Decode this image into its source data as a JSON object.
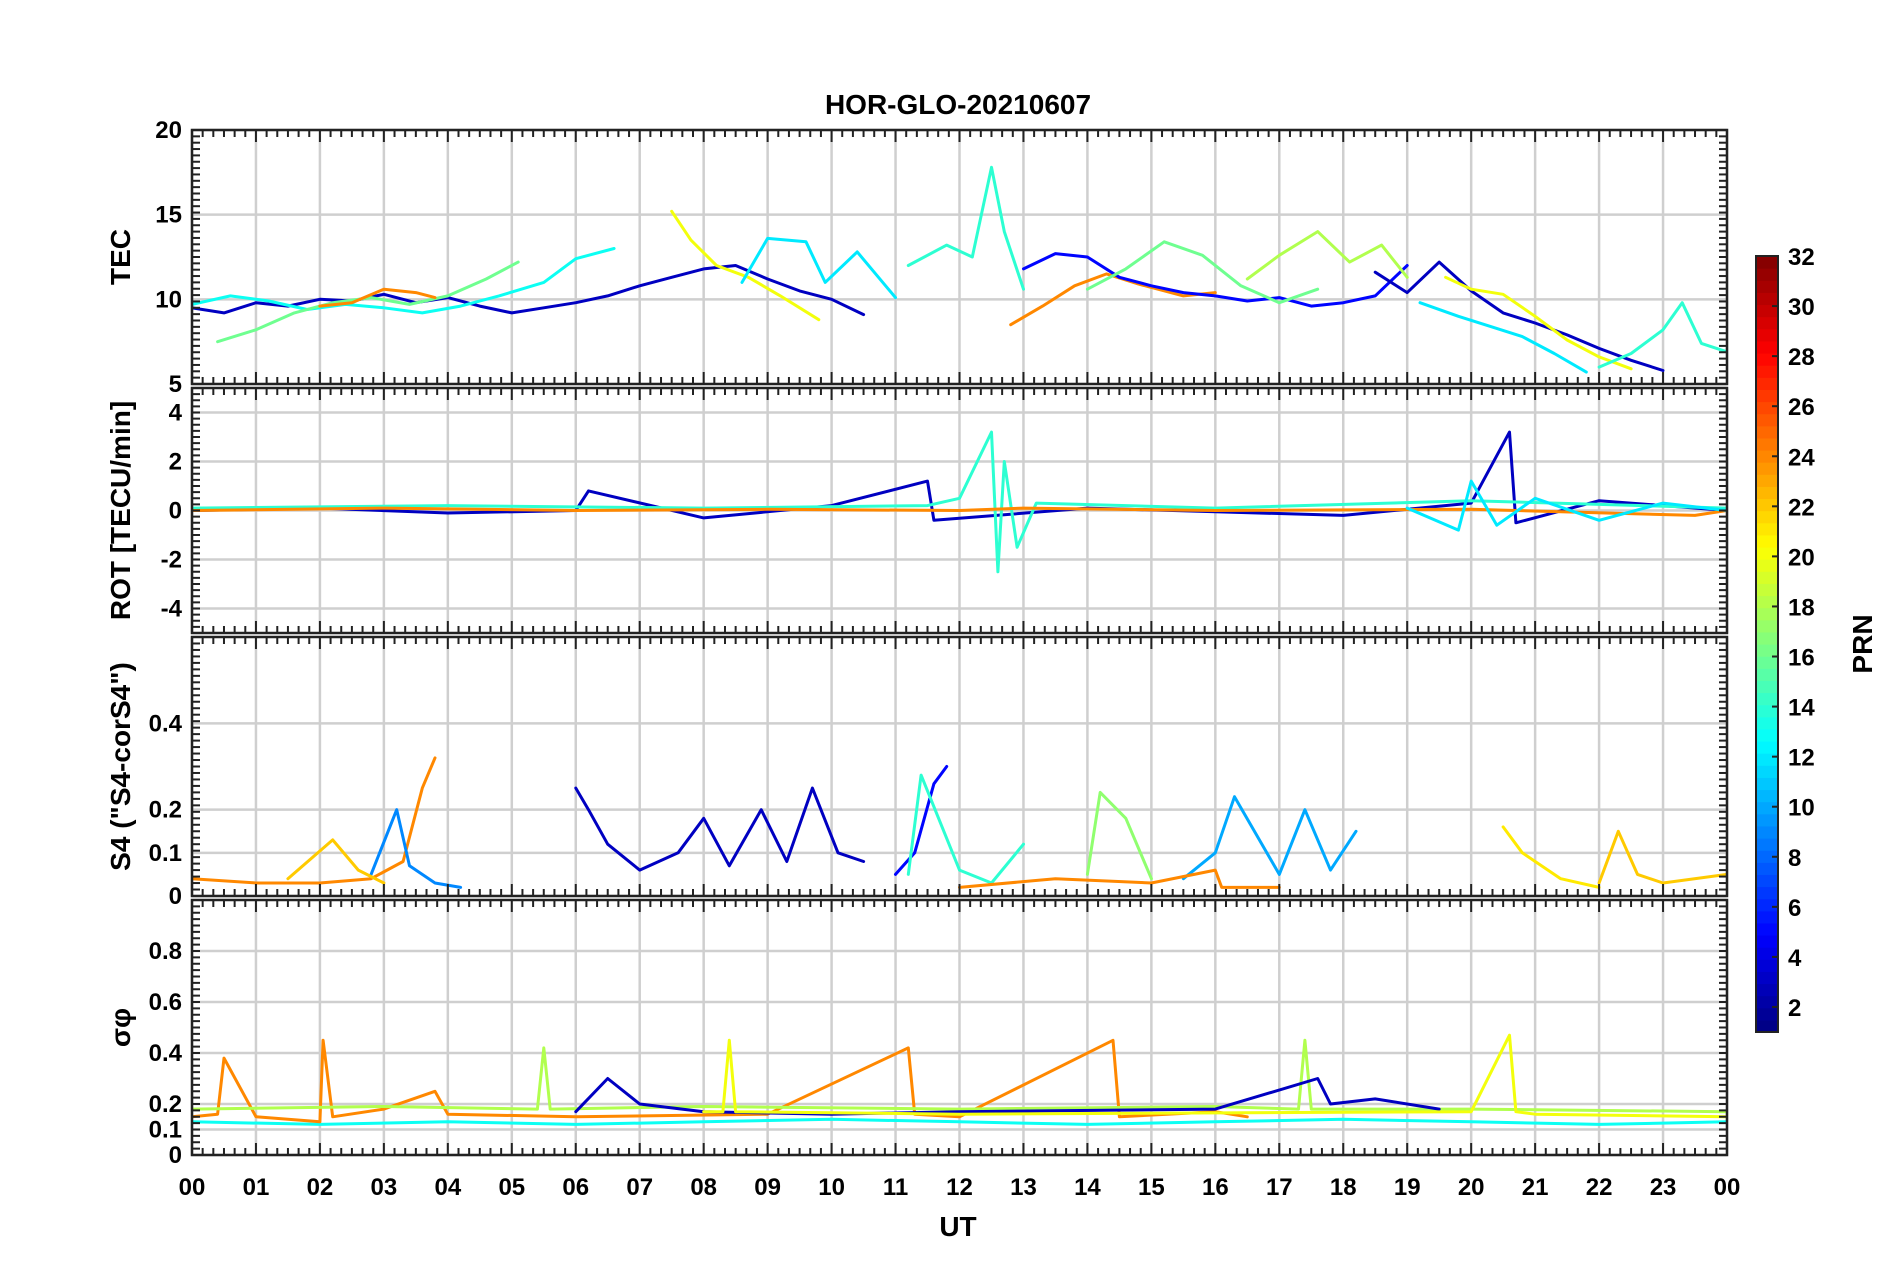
{
  "chart_data": {
    "type": "line",
    "title": "HOR-GLO-20210607",
    "xlabel": "UT",
    "x_range": [
      0,
      24
    ],
    "x_ticks": [
      "00",
      "01",
      "02",
      "03",
      "04",
      "05",
      "06",
      "07",
      "08",
      "09",
      "10",
      "11",
      "12",
      "13",
      "14",
      "15",
      "16",
      "17",
      "18",
      "19",
      "20",
      "21",
      "22",
      "23",
      "00"
    ],
    "grid": true,
    "colorbar": {
      "label": "PRN",
      "range": [
        1,
        32
      ],
      "ticks": [
        "2",
        "4",
        "6",
        "8",
        "10",
        "12",
        "14",
        "16",
        "18",
        "20",
        "22",
        "24",
        "26",
        "28",
        "30",
        "32"
      ],
      "colormap": "jet",
      "placement": "right"
    },
    "panels": [
      {
        "id": "tec",
        "ylabel": "TEC",
        "ylim": [
          5,
          20
        ],
        "y_ticks": [
          "5",
          "10",
          "15",
          "20"
        ],
        "series": [
          {
            "prn": 3,
            "x": [
              0,
              0.5,
              1,
              1.5,
              2,
              2.5,
              3,
              3.5,
              4,
              4.5,
              5,
              5.5,
              6,
              6.5,
              7,
              7.5,
              8,
              8.5,
              9,
              9.5,
              10,
              10.5
            ],
            "y": [
              9.5,
              9.2,
              9.8,
              9.6,
              10.0,
              9.9,
              10.3,
              9.8,
              10.1,
              9.6,
              9.2,
              9.5,
              9.8,
              10.2,
              10.8,
              11.3,
              11.8,
              12.0,
              11.2,
              10.5,
              10.0,
              9.1
            ]
          },
          {
            "prn": 13,
            "x": [
              0,
              0.6,
              1.2,
              1.8,
              2.4,
              3.0,
              3.6,
              4.2,
              4.8,
              5.5,
              6.0,
              6.6
            ],
            "y": [
              9.7,
              10.2,
              9.9,
              9.4,
              9.7,
              9.5,
              9.2,
              9.6,
              10.2,
              11.0,
              12.4,
              13.0
            ]
          },
          {
            "prn": 16,
            "x": [
              0.4,
              1.0,
              1.6,
              2.2,
              2.8,
              3.4,
              4.0,
              4.6,
              5.1
            ],
            "y": [
              7.5,
              8.2,
              9.2,
              9.8,
              10.1,
              9.7,
              10.2,
              11.2,
              12.2
            ]
          },
          {
            "prn": 24,
            "x": [
              2.0,
              2.5,
              3.0,
              3.5,
              3.8
            ],
            "y": [
              9.6,
              9.8,
              10.6,
              10.4,
              10.1
            ]
          },
          {
            "prn": 20,
            "x": [
              7.5,
              7.8,
              8.2,
              8.7,
              9.2,
              9.8
            ],
            "y": [
              15.2,
              13.5,
              12.0,
              11.3,
              10.2,
              8.8
            ]
          },
          {
            "prn": 12,
            "x": [
              8.6,
              9.0,
              9.6,
              9.9,
              10.4,
              11.0
            ],
            "y": [
              11.0,
              13.6,
              13.4,
              11.0,
              12.8,
              10.1
            ]
          },
          {
            "prn": 14,
            "x": [
              11.2,
              11.8,
              12.2,
              12.5,
              12.7,
              13.0
            ],
            "y": [
              12.0,
              13.2,
              12.5,
              17.8,
              14.0,
              10.6
            ]
          },
          {
            "prn": 24,
            "x": [
              12.8,
              13.3,
              13.8,
              14.3,
              14.8,
              15.5,
              16.0
            ],
            "y": [
              8.5,
              9.6,
              10.8,
              11.5,
              10.9,
              10.2,
              10.4
            ]
          },
          {
            "prn": 5,
            "x": [
              13.0,
              13.5,
              14.0,
              14.5,
              15.0,
              15.5,
              16.0,
              16.5,
              17.0,
              17.5,
              18.0,
              18.5,
              19.0
            ],
            "y": [
              11.8,
              12.7,
              12.5,
              11.3,
              10.8,
              10.4,
              10.2,
              9.9,
              10.1,
              9.6,
              9.8,
              10.2,
              12.0
            ]
          },
          {
            "prn": 16,
            "x": [
              14.0,
              14.6,
              15.2,
              15.8,
              16.4,
              17.0,
              17.6
            ],
            "y": [
              10.6,
              11.8,
              13.4,
              12.6,
              10.8,
              9.8,
              10.6
            ]
          },
          {
            "prn": 18,
            "x": [
              16.5,
              17.0,
              17.6,
              18.1,
              18.6,
              19.0
            ],
            "y": [
              11.2,
              12.6,
              14.0,
              12.2,
              13.2,
              11.3
            ]
          },
          {
            "prn": 3,
            "x": [
              18.5,
              19.0,
              19.5,
              20.0,
              20.5,
              21.0,
              21.5,
              22.0,
              22.5,
              23.0
            ],
            "y": [
              11.6,
              10.4,
              12.2,
              10.5,
              9.2,
              8.6,
              7.9,
              7.1,
              6.4,
              5.8
            ]
          },
          {
            "prn": 12,
            "x": [
              19.2,
              19.8,
              20.3,
              20.8,
              21.3,
              21.8
            ],
            "y": [
              9.8,
              9.0,
              8.4,
              7.8,
              6.8,
              5.7
            ]
          },
          {
            "prn": 20,
            "x": [
              19.6,
              20.0,
              20.5,
              21.0,
              21.5,
              22.0,
              22.5
            ],
            "y": [
              11.3,
              10.6,
              10.3,
              9.0,
              7.6,
              6.6,
              5.9
            ]
          },
          {
            "prn": 14,
            "x": [
              22.0,
              22.5,
              23.0,
              23.3,
              23.6,
              24.0
            ],
            "y": [
              6.0,
              6.8,
              8.2,
              9.8,
              7.4,
              6.9
            ]
          }
        ]
      },
      {
        "id": "rot",
        "ylabel": "ROT [TECU/min]",
        "ylim": [
          -5,
          5
        ],
        "y_ticks": [
          "-4",
          "-2",
          "0",
          "2",
          "4"
        ],
        "series": [
          {
            "prn": 3,
            "x": [
              0,
              2,
              4,
              6,
              6.2,
              8,
              10,
              11.5,
              11.6,
              14,
              18,
              20,
              20.6,
              20.7,
              22,
              24
            ],
            "y": [
              0,
              0.1,
              -0.1,
              0,
              0.8,
              -0.3,
              0.2,
              1.2,
              -0.4,
              0.1,
              -0.2,
              0.3,
              3.2,
              -0.5,
              0.4,
              0
            ]
          },
          {
            "prn": 14,
            "x": [
              0,
              4,
              8,
              11.5,
              12.0,
              12.5,
              12.6,
              12.7,
              12.9,
              13.2,
              16,
              20,
              24
            ],
            "y": [
              0.1,
              0.2,
              0.1,
              0.2,
              0.5,
              3.2,
              -2.5,
              2.0,
              -1.5,
              0.3,
              0.1,
              0.4,
              0.1
            ]
          },
          {
            "prn": 24,
            "x": [
              0,
              3,
              6,
              9,
              12,
              13,
              16,
              20,
              23.5,
              24
            ],
            "y": [
              0,
              0.1,
              0,
              0.05,
              0,
              0.1,
              0,
              0.05,
              -0.2,
              0
            ]
          },
          {
            "prn": 12,
            "x": [
              19,
              19.8,
              20.0,
              20.4,
              21,
              22,
              23,
              24
            ],
            "y": [
              0.1,
              -0.8,
              1.2,
              -0.6,
              0.5,
              -0.4,
              0.3,
              0
            ]
          }
        ]
      },
      {
        "id": "s4",
        "ylabel": "S4 (\"S4-corS4\")",
        "ylim": [
          0,
          0.6
        ],
        "y_ticks": [
          "0",
          "0.1",
          "0.2",
          "0.4"
        ],
        "series": [
          {
            "prn": 24,
            "x": [
              0,
              1,
              2,
              2.8,
              3.3,
              3.6,
              3.8
            ],
            "y": [
              0.04,
              0.03,
              0.03,
              0.04,
              0.08,
              0.25,
              0.32
            ]
          },
          {
            "prn": 9,
            "x": [
              2.8,
              3.2,
              3.4,
              3.8,
              4.2
            ],
            "y": [
              0.05,
              0.2,
              0.07,
              0.03,
              0.02
            ]
          },
          {
            "prn": 22,
            "x": [
              1.5,
              2.2,
              2.6,
              3.0
            ],
            "y": [
              0.04,
              0.13,
              0.06,
              0.03
            ]
          },
          {
            "prn": 3,
            "x": [
              6.0,
              6.2,
              6.5,
              7.0,
              7.6,
              8.0,
              8.4,
              8.9,
              9.3,
              9.7,
              10.1,
              10.5
            ],
            "y": [
              0.25,
              0.2,
              0.12,
              0.06,
              0.1,
              0.18,
              0.07,
              0.2,
              0.08,
              0.25,
              0.1,
              0.08
            ]
          },
          {
            "prn": 5,
            "x": [
              11.0,
              11.3,
              11.6,
              11.8
            ],
            "y": [
              0.05,
              0.1,
              0.26,
              0.3
            ]
          },
          {
            "prn": 14,
            "x": [
              11.2,
              11.4,
              12.0,
              12.5,
              13.0
            ],
            "y": [
              0.05,
              0.28,
              0.06,
              0.03,
              0.12
            ]
          },
          {
            "prn": 17,
            "x": [
              14.0,
              14.2,
              14.6,
              15.0
            ],
            "y": [
              0.05,
              0.24,
              0.18,
              0.04
            ]
          },
          {
            "prn": 10,
            "x": [
              15.5,
              16.0,
              16.3,
              17.0,
              17.4,
              17.8,
              18.2
            ],
            "y": [
              0.04,
              0.1,
              0.23,
              0.05,
              0.2,
              0.06,
              0.15
            ]
          },
          {
            "prn": 21,
            "x": [
              20.5,
              20.8,
              21.4,
              22.0
            ],
            "y": [
              0.16,
              0.1,
              0.04,
              0.02
            ]
          },
          {
            "prn": 22,
            "x": [
              22.0,
              22.3,
              22.6,
              23.0,
              24.0
            ],
            "y": [
              0.03,
              0.15,
              0.05,
              0.03,
              0.05
            ]
          },
          {
            "prn": 24,
            "x": [
              12.0,
              13.5,
              15.0,
              16.0,
              16.1,
              17
            ],
            "y": [
              0.02,
              0.04,
              0.03,
              0.06,
              0.02,
              0.02
            ]
          }
        ]
      },
      {
        "id": "sigma_phi",
        "ylabel": "σφ",
        "ylim": [
          0,
          1
        ],
        "y_ticks": [
          "0",
          "0.1",
          "0.2",
          "0.4",
          "0.6",
          "0.8"
        ],
        "series": [
          {
            "prn": 13,
            "x": [
              0,
              2,
              4,
              6,
              8,
              10,
              12,
              14,
              16,
              18,
              20,
              22,
              24
            ],
            "y": [
              0.13,
              0.12,
              0.13,
              0.12,
              0.13,
              0.14,
              0.13,
              0.12,
              0.13,
              0.14,
              0.13,
              0.12,
              0.13
            ]
          },
          {
            "prn": 24,
            "x": [
              0,
              0.4,
              0.5,
              1.0,
              2.0,
              2.05,
              2.2,
              3.0,
              3.8,
              4.0,
              6,
              9,
              11.2,
              11.3,
              12,
              14.4,
              14.5,
              16,
              16.5
            ],
            "y": [
              0.15,
              0.16,
              0.38,
              0.15,
              0.13,
              0.45,
              0.15,
              0.18,
              0.25,
              0.16,
              0.15,
              0.16,
              0.42,
              0.16,
              0.15,
              0.45,
              0.15,
              0.17,
              0.15
            ]
          },
          {
            "prn": 18,
            "x": [
              0,
              3,
              5.4,
              5.5,
              5.6,
              8,
              12,
              16,
              17.3,
              17.4,
              17.5,
              20,
              24
            ],
            "y": [
              0.18,
              0.19,
              0.18,
              0.42,
              0.18,
              0.19,
              0.18,
              0.19,
              0.18,
              0.45,
              0.18,
              0.18,
              0.17
            ]
          },
          {
            "prn": 3,
            "x": [
              6.0,
              6.5,
              7.0,
              8.0,
              10,
              12,
              16,
              17.6,
              17.8,
              18.5,
              19.5
            ],
            "y": [
              0.17,
              0.3,
              0.2,
              0.17,
              0.16,
              0.17,
              0.18,
              0.3,
              0.2,
              0.22,
              0.18
            ]
          },
          {
            "prn": 20,
            "x": [
              8.0,
              8.3,
              8.4,
              8.5,
              12,
              20,
              20.6,
              20.7,
              21,
              24
            ],
            "y": [
              0.17,
              0.17,
              0.45,
              0.17,
              0.16,
              0.17,
              0.47,
              0.17,
              0.16,
              0.15
            ]
          }
        ]
      }
    ]
  }
}
